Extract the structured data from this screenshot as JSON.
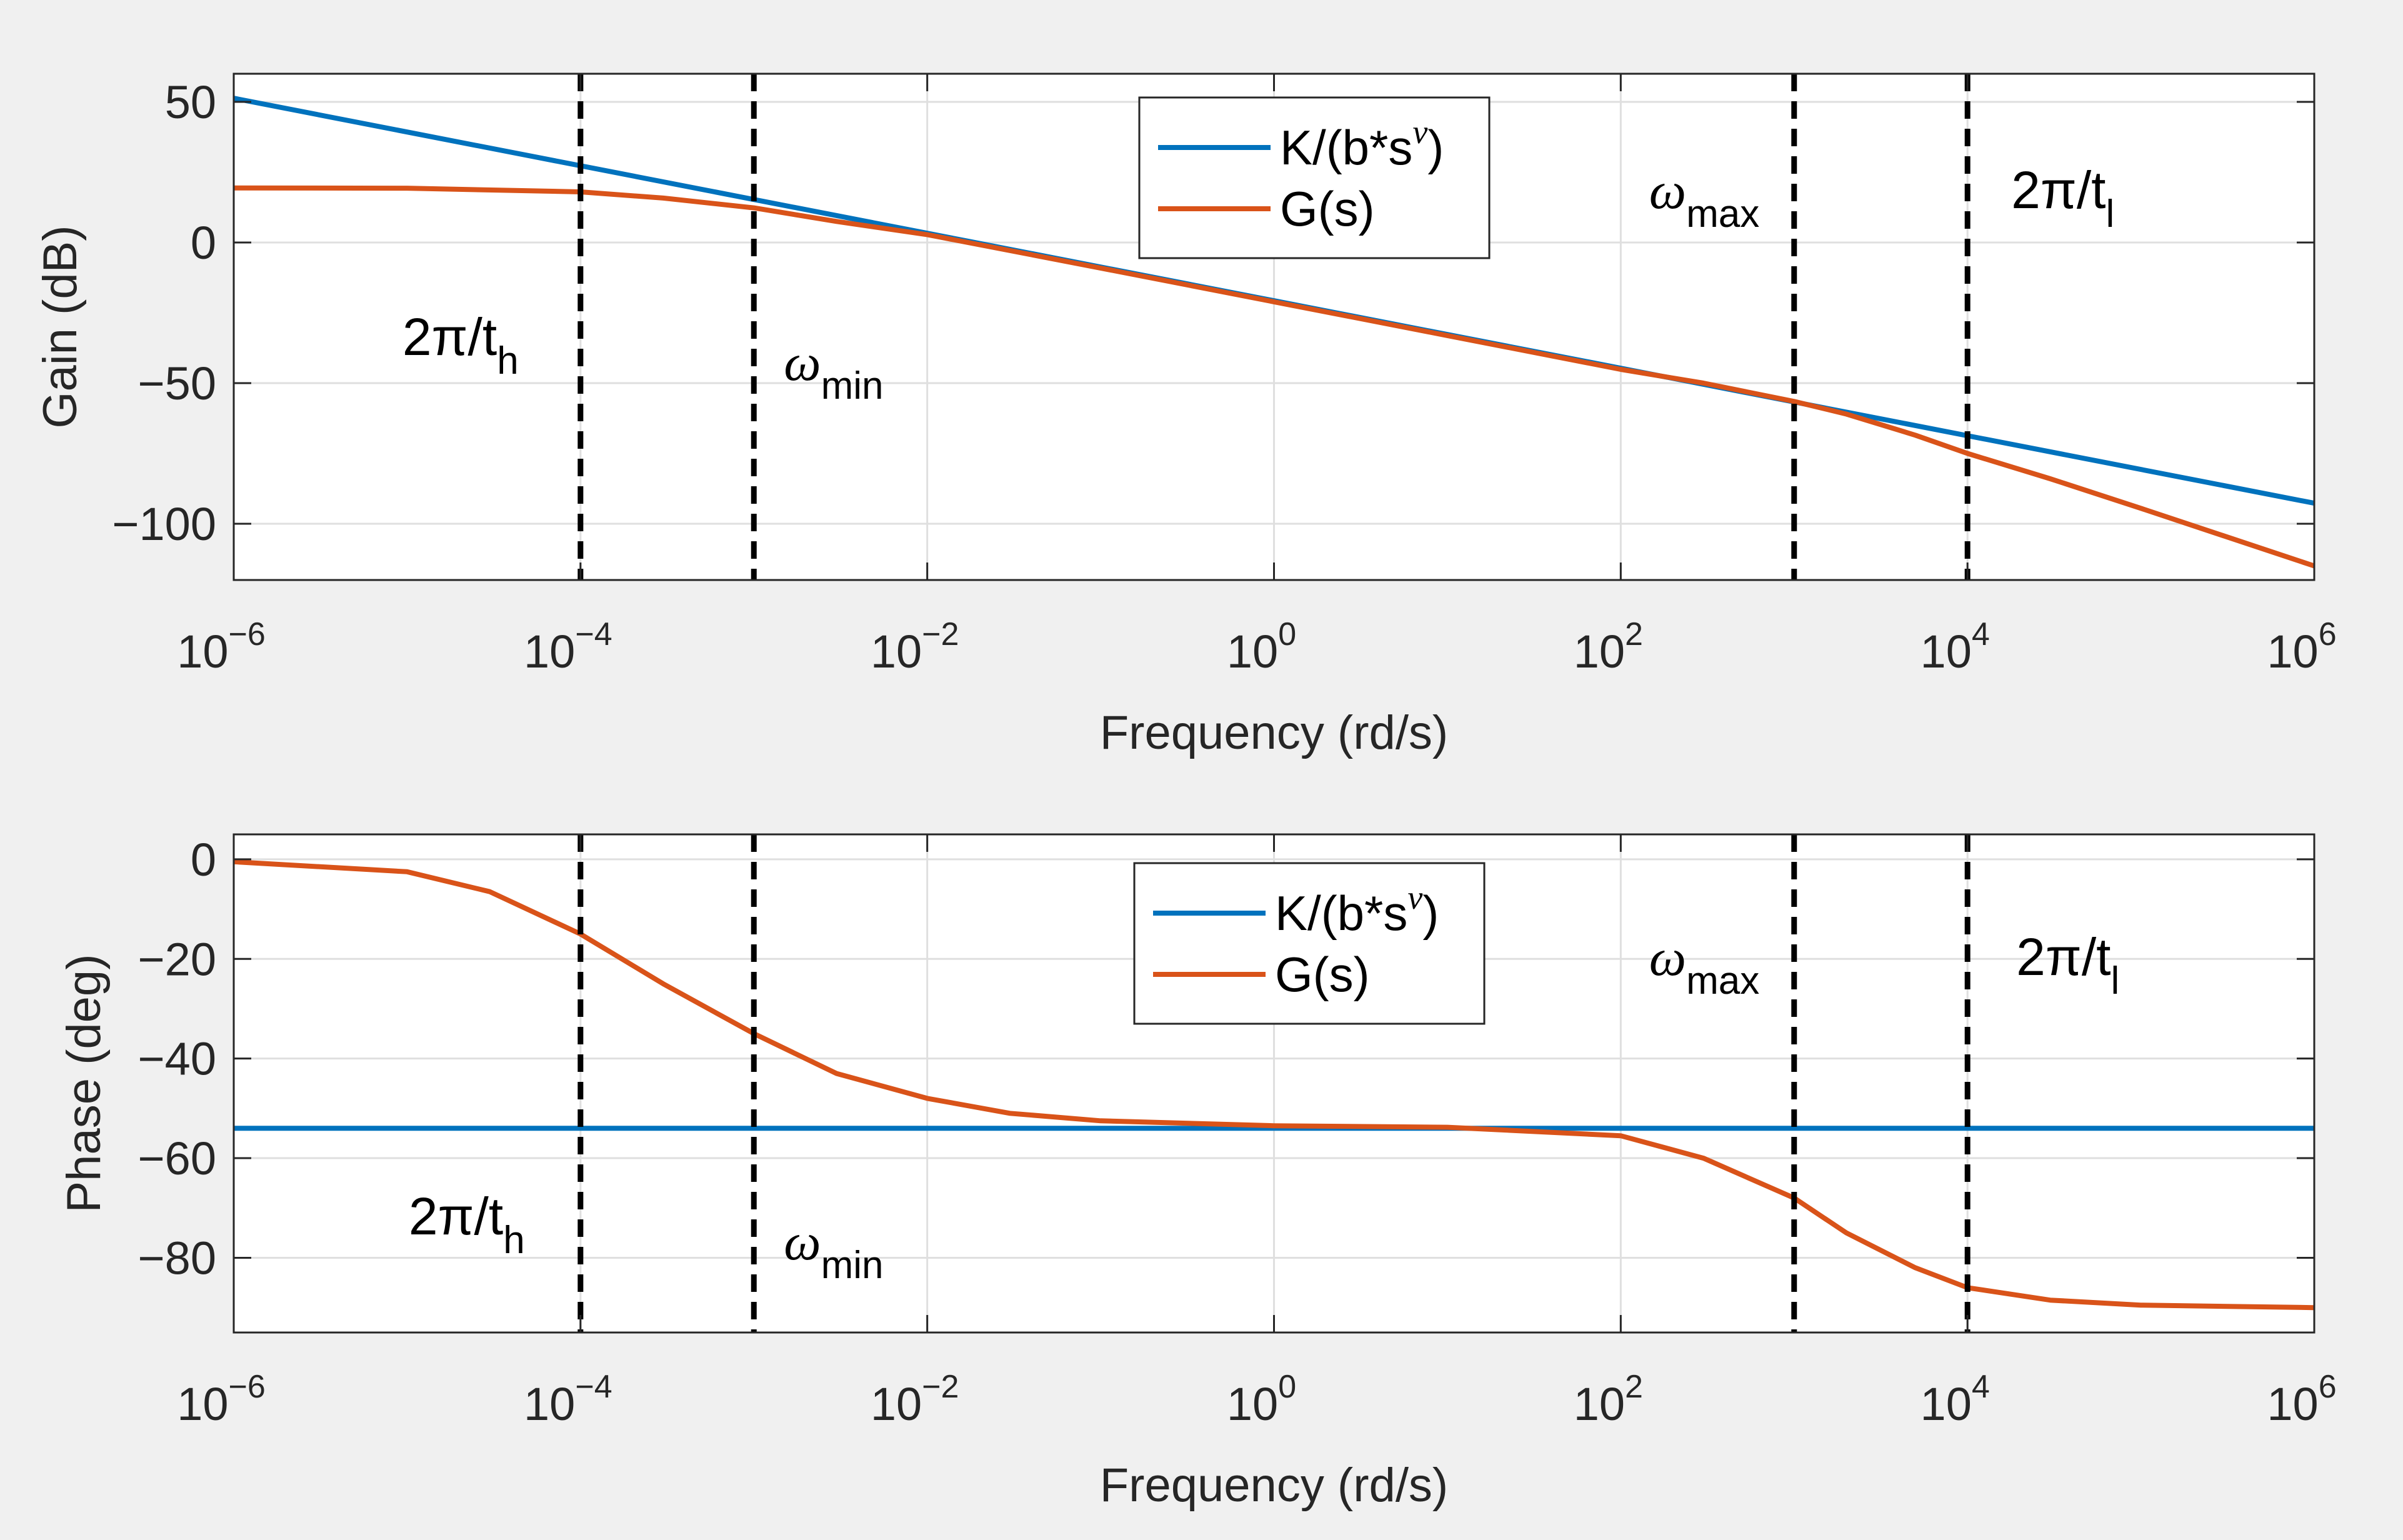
{
  "colors": {
    "figure_bg": "#f0f0f0",
    "axes_bg": "#ffffff",
    "series_k": "#0072bd",
    "series_g": "#d95319",
    "grid": "#dfdfdf",
    "axis": "#262626",
    "marker": "#000000"
  },
  "chart_data": [
    {
      "type": "line",
      "id": "gain",
      "xscale": "log",
      "xlim": [
        1e-06,
        1000000.0
      ],
      "ylim": [
        -120,
        60
      ],
      "xlabel": "Frequency (rd/s)",
      "ylabel": "Gain (dB)",
      "x_ticks": [
        {
          "value": -6,
          "base": "10",
          "exp": "−6"
        },
        {
          "value": -4,
          "base": "10",
          "exp": "−4"
        },
        {
          "value": -2,
          "base": "10",
          "exp": "−2"
        },
        {
          "value": 0,
          "base": "10",
          "exp": "0"
        },
        {
          "value": 2,
          "base": "10",
          "exp": "2"
        },
        {
          "value": 4,
          "base": "10",
          "exp": "4"
        },
        {
          "value": 6,
          "base": "10",
          "exp": "6"
        }
      ],
      "y_ticks": [
        {
          "value": 50,
          "label": "50"
        },
        {
          "value": 0,
          "label": "0"
        },
        {
          "value": -50,
          "label": "−50"
        },
        {
          "value": -100,
          "label": "−100"
        }
      ],
      "grid": true,
      "legend": {
        "placement": "top-center"
      },
      "series": [
        {
          "name": "K/(b*s",
          "name_sup": "ν",
          "name_end": ")",
          "color": "#0072bd",
          "x": [
            1e-06,
            1000000.0
          ],
          "y": [
            51.3,
            -92.7
          ]
        },
        {
          "name": "G(s)",
          "color": "#d95319",
          "x": [
            1e-06,
            1e-05,
            0.0001,
            0.0003,
            0.001,
            0.003,
            0.01,
            0.1,
            1,
            10,
            100,
            300,
            1000,
            2000,
            5000,
            10000,
            30000,
            100000,
            1000000
          ],
          "y": [
            19.4,
            19.3,
            18.0,
            15.8,
            12.3,
            7.5,
            2.8,
            -9.1,
            -21.1,
            -33.1,
            -45.1,
            -50.0,
            -56.5,
            -61.0,
            -68.5,
            -75.0,
            -84.0,
            -94.5,
            -115.0
          ]
        }
      ],
      "markers": [
        {
          "x": 0.0001,
          "label": "2π/t",
          "sub": "h",
          "side": "left"
        },
        {
          "x": 0.001,
          "label": "ω",
          "sub": "min",
          "side": "right"
        },
        {
          "x": 1000.0,
          "label": "ω",
          "sub": "max",
          "side": "left"
        },
        {
          "x": 10000.0,
          "label": "2π/t",
          "sub": "l",
          "side": "right"
        }
      ]
    },
    {
      "type": "line",
      "id": "phase",
      "xscale": "log",
      "xlim": [
        1e-06,
        1000000.0
      ],
      "ylim": [
        -95,
        5
      ],
      "xlabel": "Frequency (rd/s)",
      "ylabel": "Phase (deg)",
      "x_ticks": [
        {
          "value": -6,
          "base": "10",
          "exp": "−6"
        },
        {
          "value": -4,
          "base": "10",
          "exp": "−4"
        },
        {
          "value": -2,
          "base": "10",
          "exp": "−2"
        },
        {
          "value": 0,
          "base": "10",
          "exp": "0"
        },
        {
          "value": 2,
          "base": "10",
          "exp": "2"
        },
        {
          "value": 4,
          "base": "10",
          "exp": "4"
        },
        {
          "value": 6,
          "base": "10",
          "exp": "6"
        }
      ],
      "y_ticks": [
        {
          "value": 0,
          "label": "0"
        },
        {
          "value": -20,
          "label": "−20"
        },
        {
          "value": -40,
          "label": "−40"
        },
        {
          "value": -60,
          "label": "−60"
        },
        {
          "value": -80,
          "label": "−80"
        }
      ],
      "grid": true,
      "legend": {
        "placement": "top-center"
      },
      "series": [
        {
          "name": "K/(b*s",
          "name_sup": "ν",
          "name_end": ")",
          "color": "#0072bd",
          "x": [
            1e-06,
            1000000.0
          ],
          "y": [
            -54,
            -54
          ]
        },
        {
          "name": "G(s)",
          "color": "#d95319",
          "x": [
            1e-06,
            1e-05,
            3e-05,
            0.0001,
            0.0003,
            0.001,
            0.003,
            0.01,
            0.03,
            0.1,
            1,
            10,
            100,
            300,
            1000,
            2000,
            5000,
            10000,
            30000,
            100000,
            1000000
          ],
          "y": [
            -0.5,
            -2.5,
            -6.5,
            -15,
            -25,
            -35,
            -43,
            -48,
            -51,
            -52.5,
            -53.5,
            -53.8,
            -55.5,
            -60.0,
            -68,
            -75,
            -82,
            -86,
            -88.5,
            -89.5,
            -90
          ]
        }
      ],
      "markers": [
        {
          "x": 0.0001,
          "label": "2π/t",
          "sub": "h",
          "side": "left"
        },
        {
          "x": 0.001,
          "label": "ω",
          "sub": "min",
          "side": "right"
        },
        {
          "x": 1000.0,
          "label": "ω",
          "sub": "max",
          "side": "left"
        },
        {
          "x": 10000.0,
          "label": "2π/t",
          "sub": "l",
          "side": "right"
        }
      ]
    }
  ]
}
